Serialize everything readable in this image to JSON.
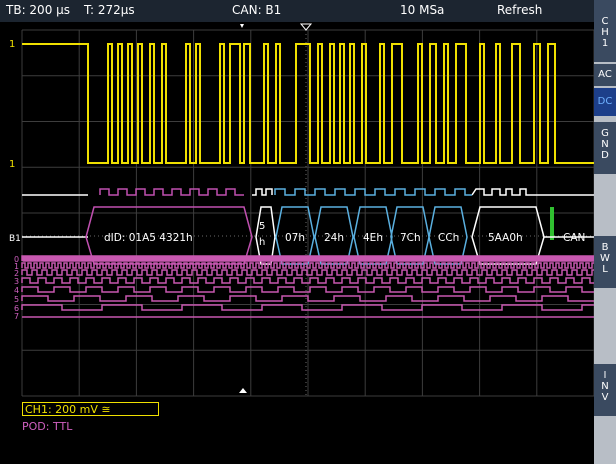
{
  "topbar": {
    "timebase": "TB: 200 µs",
    "trigger_time": "T: 272µs",
    "source": "CAN: B1",
    "sample_rate": "10 MSa",
    "mode": "Refresh"
  },
  "markers": {
    "ch1_marker": "1",
    "bus_marker": "B1",
    "digital_channels": [
      "0",
      "1",
      "2",
      "3",
      "4",
      "5",
      "6",
      "7"
    ]
  },
  "decode": {
    "frame_id": "dID: 01A5 4321h",
    "dlc_top": "5",
    "dlc_bottom": "h",
    "bytes": [
      "07h",
      "24h",
      "4Eh",
      "7Ch",
      "CCh"
    ],
    "crc": "5AA0h",
    "end_label": "CAN"
  },
  "status": {
    "ch1": "CH1: 200 mV ≅",
    "pod": "POD: TTL"
  },
  "sidebar": {
    "channel": [
      "C",
      "H",
      "1"
    ],
    "coupling_ac": "AC",
    "coupling_dc": "DC",
    "gnd": [
      "G",
      "N",
      "D"
    ],
    "bwl": [
      "B",
      "W",
      "L"
    ],
    "inv": [
      "I",
      "N",
      "V"
    ]
  },
  "colors": {
    "ch1": "#f0e000",
    "decode_id": "#c050b0",
    "decode_data": "#5ab0e0",
    "crc_ok": "#30c030",
    "digital": "#c858b0",
    "grid": "#3a3a3a"
  }
}
